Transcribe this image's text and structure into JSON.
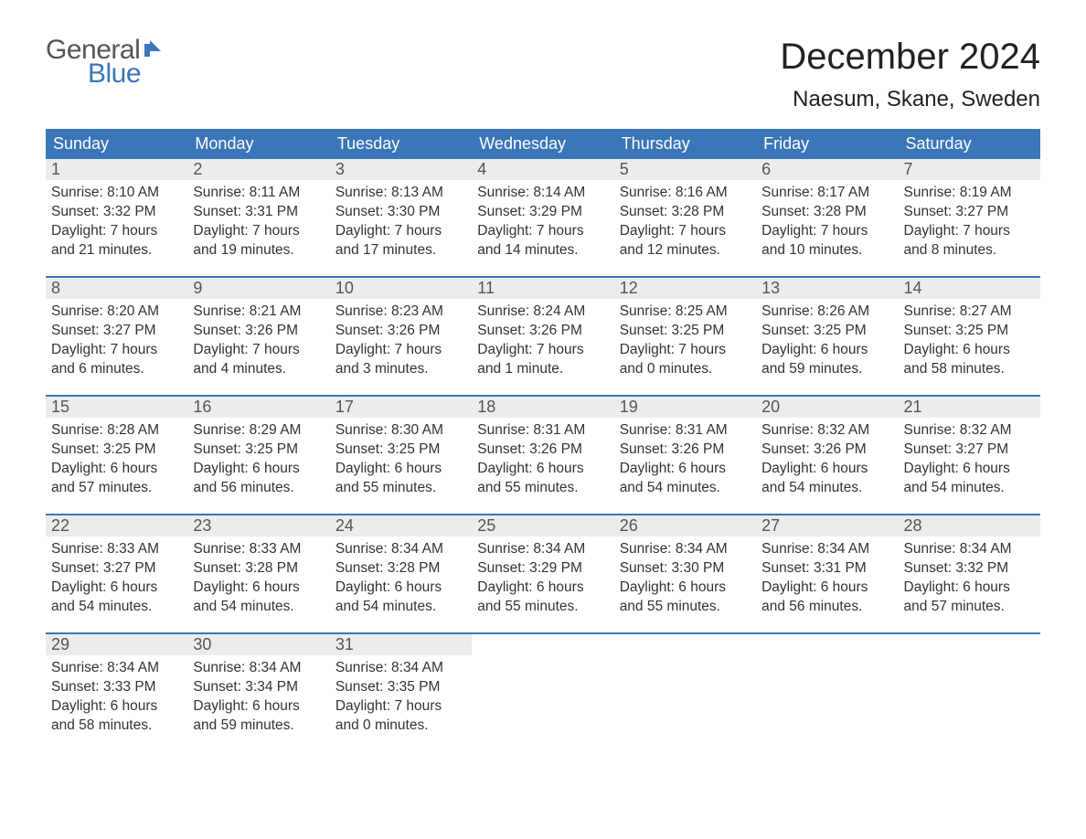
{
  "logo": {
    "text_general": "General",
    "text_blue": "Blue",
    "flag_color": "#3a76b8"
  },
  "title": "December 2024",
  "location": "Naesum, Skane, Sweden",
  "colors": {
    "header_bg": "#3a76b8",
    "header_text": "#ffffff",
    "daybar_bg": "#ececec",
    "daybar_text": "#555555",
    "body_text": "#333333",
    "week_divider": "#3a76b8"
  },
  "weekdays": [
    "Sunday",
    "Monday",
    "Tuesday",
    "Wednesday",
    "Thursday",
    "Friday",
    "Saturday"
  ],
  "weeks": [
    [
      {
        "n": "1",
        "sunrise": "Sunrise: 8:10 AM",
        "sunset": "Sunset: 3:32 PM",
        "d1": "Daylight: 7 hours",
        "d2": "and 21 minutes."
      },
      {
        "n": "2",
        "sunrise": "Sunrise: 8:11 AM",
        "sunset": "Sunset: 3:31 PM",
        "d1": "Daylight: 7 hours",
        "d2": "and 19 minutes."
      },
      {
        "n": "3",
        "sunrise": "Sunrise: 8:13 AM",
        "sunset": "Sunset: 3:30 PM",
        "d1": "Daylight: 7 hours",
        "d2": "and 17 minutes."
      },
      {
        "n": "4",
        "sunrise": "Sunrise: 8:14 AM",
        "sunset": "Sunset: 3:29 PM",
        "d1": "Daylight: 7 hours",
        "d2": "and 14 minutes."
      },
      {
        "n": "5",
        "sunrise": "Sunrise: 8:16 AM",
        "sunset": "Sunset: 3:28 PM",
        "d1": "Daylight: 7 hours",
        "d2": "and 12 minutes."
      },
      {
        "n": "6",
        "sunrise": "Sunrise: 8:17 AM",
        "sunset": "Sunset: 3:28 PM",
        "d1": "Daylight: 7 hours",
        "d2": "and 10 minutes."
      },
      {
        "n": "7",
        "sunrise": "Sunrise: 8:19 AM",
        "sunset": "Sunset: 3:27 PM",
        "d1": "Daylight: 7 hours",
        "d2": "and 8 minutes."
      }
    ],
    [
      {
        "n": "8",
        "sunrise": "Sunrise: 8:20 AM",
        "sunset": "Sunset: 3:27 PM",
        "d1": "Daylight: 7 hours",
        "d2": "and 6 minutes."
      },
      {
        "n": "9",
        "sunrise": "Sunrise: 8:21 AM",
        "sunset": "Sunset: 3:26 PM",
        "d1": "Daylight: 7 hours",
        "d2": "and 4 minutes."
      },
      {
        "n": "10",
        "sunrise": "Sunrise: 8:23 AM",
        "sunset": "Sunset: 3:26 PM",
        "d1": "Daylight: 7 hours",
        "d2": "and 3 minutes."
      },
      {
        "n": "11",
        "sunrise": "Sunrise: 8:24 AM",
        "sunset": "Sunset: 3:26 PM",
        "d1": "Daylight: 7 hours",
        "d2": "and 1 minute."
      },
      {
        "n": "12",
        "sunrise": "Sunrise: 8:25 AM",
        "sunset": "Sunset: 3:25 PM",
        "d1": "Daylight: 7 hours",
        "d2": "and 0 minutes."
      },
      {
        "n": "13",
        "sunrise": "Sunrise: 8:26 AM",
        "sunset": "Sunset: 3:25 PM",
        "d1": "Daylight: 6 hours",
        "d2": "and 59 minutes."
      },
      {
        "n": "14",
        "sunrise": "Sunrise: 8:27 AM",
        "sunset": "Sunset: 3:25 PM",
        "d1": "Daylight: 6 hours",
        "d2": "and 58 minutes."
      }
    ],
    [
      {
        "n": "15",
        "sunrise": "Sunrise: 8:28 AM",
        "sunset": "Sunset: 3:25 PM",
        "d1": "Daylight: 6 hours",
        "d2": "and 57 minutes."
      },
      {
        "n": "16",
        "sunrise": "Sunrise: 8:29 AM",
        "sunset": "Sunset: 3:25 PM",
        "d1": "Daylight: 6 hours",
        "d2": "and 56 minutes."
      },
      {
        "n": "17",
        "sunrise": "Sunrise: 8:30 AM",
        "sunset": "Sunset: 3:25 PM",
        "d1": "Daylight: 6 hours",
        "d2": "and 55 minutes."
      },
      {
        "n": "18",
        "sunrise": "Sunrise: 8:31 AM",
        "sunset": "Sunset: 3:26 PM",
        "d1": "Daylight: 6 hours",
        "d2": "and 55 minutes."
      },
      {
        "n": "19",
        "sunrise": "Sunrise: 8:31 AM",
        "sunset": "Sunset: 3:26 PM",
        "d1": "Daylight: 6 hours",
        "d2": "and 54 minutes."
      },
      {
        "n": "20",
        "sunrise": "Sunrise: 8:32 AM",
        "sunset": "Sunset: 3:26 PM",
        "d1": "Daylight: 6 hours",
        "d2": "and 54 minutes."
      },
      {
        "n": "21",
        "sunrise": "Sunrise: 8:32 AM",
        "sunset": "Sunset: 3:27 PM",
        "d1": "Daylight: 6 hours",
        "d2": "and 54 minutes."
      }
    ],
    [
      {
        "n": "22",
        "sunrise": "Sunrise: 8:33 AM",
        "sunset": "Sunset: 3:27 PM",
        "d1": "Daylight: 6 hours",
        "d2": "and 54 minutes."
      },
      {
        "n": "23",
        "sunrise": "Sunrise: 8:33 AM",
        "sunset": "Sunset: 3:28 PM",
        "d1": "Daylight: 6 hours",
        "d2": "and 54 minutes."
      },
      {
        "n": "24",
        "sunrise": "Sunrise: 8:34 AM",
        "sunset": "Sunset: 3:28 PM",
        "d1": "Daylight: 6 hours",
        "d2": "and 54 minutes."
      },
      {
        "n": "25",
        "sunrise": "Sunrise: 8:34 AM",
        "sunset": "Sunset: 3:29 PM",
        "d1": "Daylight: 6 hours",
        "d2": "and 55 minutes."
      },
      {
        "n": "26",
        "sunrise": "Sunrise: 8:34 AM",
        "sunset": "Sunset: 3:30 PM",
        "d1": "Daylight: 6 hours",
        "d2": "and 55 minutes."
      },
      {
        "n": "27",
        "sunrise": "Sunrise: 8:34 AM",
        "sunset": "Sunset: 3:31 PM",
        "d1": "Daylight: 6 hours",
        "d2": "and 56 minutes."
      },
      {
        "n": "28",
        "sunrise": "Sunrise: 8:34 AM",
        "sunset": "Sunset: 3:32 PM",
        "d1": "Daylight: 6 hours",
        "d2": "and 57 minutes."
      }
    ],
    [
      {
        "n": "29",
        "sunrise": "Sunrise: 8:34 AM",
        "sunset": "Sunset: 3:33 PM",
        "d1": "Daylight: 6 hours",
        "d2": "and 58 minutes."
      },
      {
        "n": "30",
        "sunrise": "Sunrise: 8:34 AM",
        "sunset": "Sunset: 3:34 PM",
        "d1": "Daylight: 6 hours",
        "d2": "and 59 minutes."
      },
      {
        "n": "31",
        "sunrise": "Sunrise: 8:34 AM",
        "sunset": "Sunset: 3:35 PM",
        "d1": "Daylight: 7 hours",
        "d2": "and 0 minutes."
      },
      null,
      null,
      null,
      null
    ]
  ]
}
